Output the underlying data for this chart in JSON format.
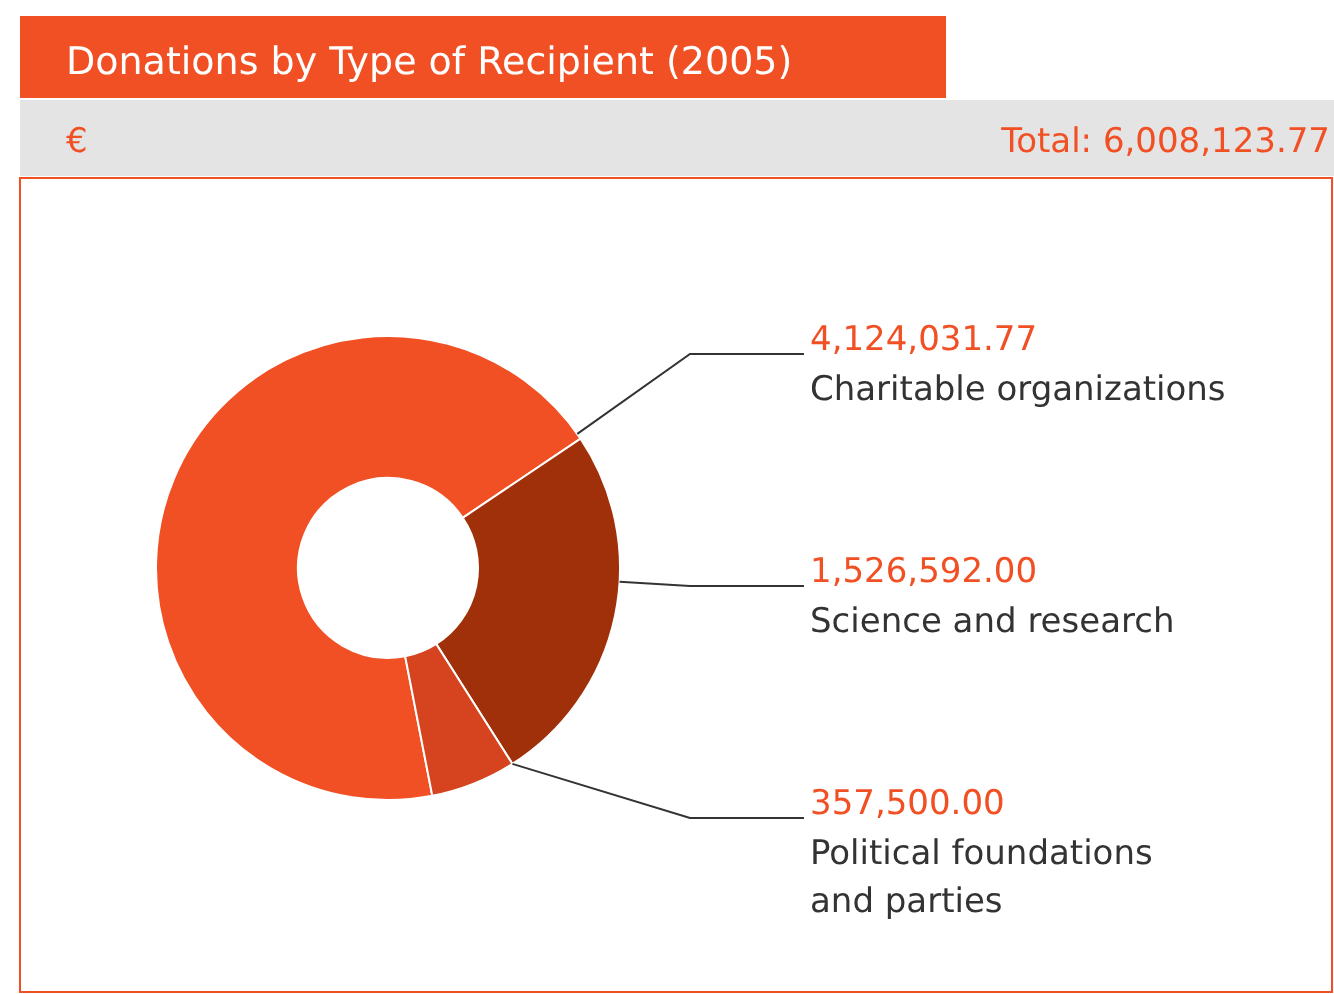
{
  "chart_data": {
    "type": "donut",
    "title": "Donations by Type of Recipient (2005)",
    "subtitle": "€",
    "annotations": [
      "Total: 6,008,123.77"
    ],
    "categories": [
      "Charitable organizations",
      "Science and research",
      "Political foundations and parties"
    ],
    "values": [
      4124031.77,
      1526592.0,
      357500.0
    ],
    "value_labels": [
      "4,124,031.77",
      "1,526,592.00",
      "357,500.00"
    ],
    "colors": [
      "#f15024",
      "#a0300a",
      "#d5441f"
    ]
  }
}
